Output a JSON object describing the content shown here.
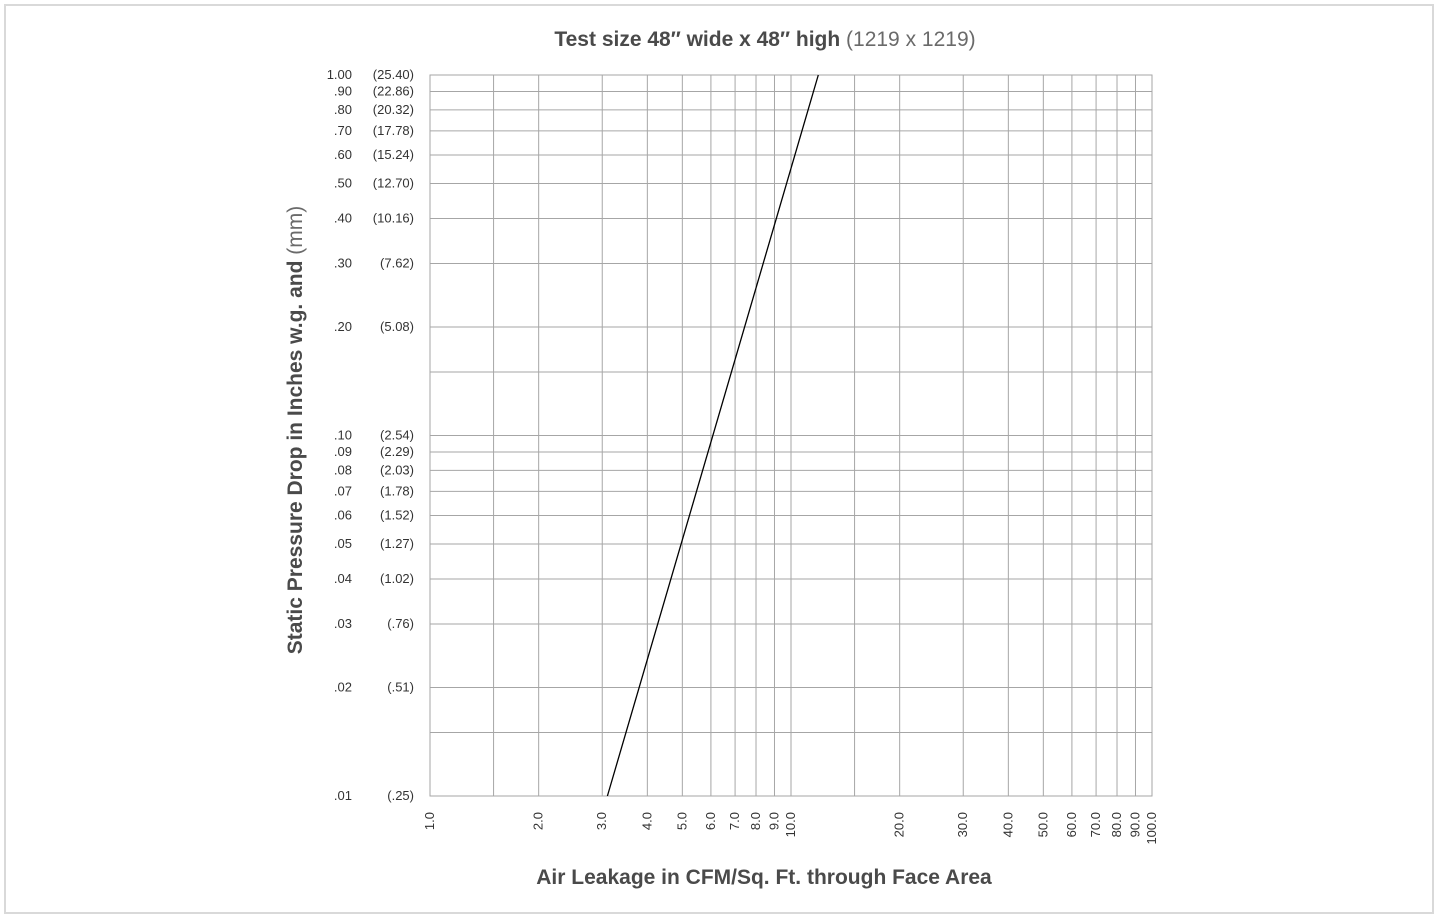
{
  "chart_data": {
    "type": "line",
    "title_main": "Test size 48″ wide x 48″ high",
    "title_sub": "(1219 x 1219)",
    "xlabel": "Air Leakage in CFM/Sq. Ft. through Face Area",
    "ylabel_main": "Static Pressure Drop in Inches w.g. and",
    "ylabel_sub": "(mm)",
    "x_scale": "log",
    "y_scale": "log",
    "xlim": [
      1.0,
      100.0
    ],
    "ylim": [
      0.01,
      1.0
    ],
    "grid": true,
    "x_ticks": [
      {
        "value": 1,
        "label": "1.0"
      },
      {
        "value": 2,
        "label": "2.0"
      },
      {
        "value": 3,
        "label": "3.0"
      },
      {
        "value": 4,
        "label": "4.0"
      },
      {
        "value": 5,
        "label": "5.0"
      },
      {
        "value": 6,
        "label": "6.0"
      },
      {
        "value": 7,
        "label": "7.0"
      },
      {
        "value": 8,
        "label": "8.0"
      },
      {
        "value": 9,
        "label": "9.0"
      },
      {
        "value": 10,
        "label": "10.0"
      },
      {
        "value": 20,
        "label": "20.0"
      },
      {
        "value": 30,
        "label": "30.0"
      },
      {
        "value": 40,
        "label": "40.0"
      },
      {
        "value": 50,
        "label": "50.0"
      },
      {
        "value": 60,
        "label": "60.0"
      },
      {
        "value": 70,
        "label": "70.0"
      },
      {
        "value": 80,
        "label": "80.0"
      },
      {
        "value": 90,
        "label": "90.0"
      },
      {
        "value": 100,
        "label": "100.0"
      }
    ],
    "x_extra_gridlines": [
      1.5,
      15
    ],
    "y_ticks": [
      {
        "value": 1.0,
        "label": "1.00",
        "mm": "(25.40)"
      },
      {
        "value": 0.9,
        "label": ".90",
        "mm": "(22.86)"
      },
      {
        "value": 0.8,
        "label": ".80",
        "mm": "(20.32)"
      },
      {
        "value": 0.7,
        "label": ".70",
        "mm": "(17.78)"
      },
      {
        "value": 0.6,
        "label": ".60",
        "mm": "(15.24)"
      },
      {
        "value": 0.5,
        "label": ".50",
        "mm": "(12.70)"
      },
      {
        "value": 0.4,
        "label": ".40",
        "mm": "(10.16)"
      },
      {
        "value": 0.3,
        "label": ".30",
        "mm": "(7.62)"
      },
      {
        "value": 0.2,
        "label": ".20",
        "mm": "(5.08)"
      },
      {
        "value": 0.1,
        "label": ".10",
        "mm": "(2.54)"
      },
      {
        "value": 0.09,
        "label": ".09",
        "mm": "(2.29)"
      },
      {
        "value": 0.08,
        "label": ".08",
        "mm": "(2.03)"
      },
      {
        "value": 0.07,
        "label": ".07",
        "mm": "(1.78)"
      },
      {
        "value": 0.06,
        "label": ".06",
        "mm": "(1.52)"
      },
      {
        "value": 0.05,
        "label": ".05",
        "mm": "(1.27)"
      },
      {
        "value": 0.04,
        "label": ".04",
        "mm": "(1.02)"
      },
      {
        "value": 0.03,
        "label": ".03",
        "mm": "(.76)"
      },
      {
        "value": 0.02,
        "label": ".02",
        "mm": "(.51)"
      },
      {
        "value": 0.01,
        "label": ".01",
        "mm": "(.25)"
      }
    ],
    "y_extra_gridlines": [
      0.15,
      0.015
    ],
    "series": [
      {
        "x": [
          3.1,
          11.9
        ],
        "y": [
          0.01,
          1.0
        ]
      }
    ],
    "colors": {
      "grid": "#a6a6a6",
      "line": "#000000",
      "frame": "#d9d9d9"
    }
  }
}
